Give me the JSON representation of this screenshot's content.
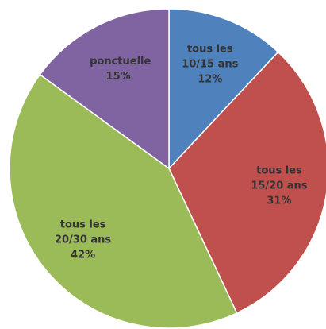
{
  "chart_data": {
    "type": "pie",
    "categories": [
      "tous les 10/15 ans",
      "tous les 15/20 ans",
      "tous les 20/30 ans",
      "ponctuelle"
    ],
    "values": [
      12,
      31,
      42,
      15
    ],
    "value_labels": [
      "12%",
      "31%",
      "42%",
      "15%"
    ],
    "colors": [
      "#4f81bd",
      "#c0504d",
      "#9bbb59",
      "#8064a2"
    ]
  }
}
